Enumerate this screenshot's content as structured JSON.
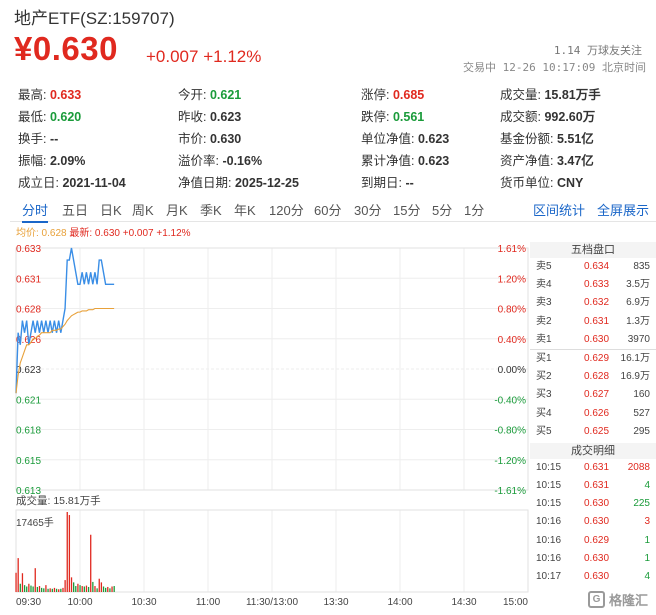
{
  "header": {
    "title": "地产ETF(SZ:159707)",
    "price": "¥0.630",
    "change": "+0.007",
    "change_pct": "+1.12%",
    "follow_count": "1.14 万球友关注",
    "status": "交易中 12-26 10:17:09 北京时间"
  },
  "stats": [
    [
      {
        "label": "最高:",
        "value": "0.633",
        "color": "red"
      },
      {
        "label": "今开:",
        "value": "0.621",
        "color": "green"
      },
      {
        "label": "涨停:",
        "value": "0.685",
        "color": "red"
      },
      {
        "label": "成交量:",
        "value": "15.81万手",
        "color": "dark"
      }
    ],
    [
      {
        "label": "最低:",
        "value": "0.620",
        "color": "green"
      },
      {
        "label": "昨收:",
        "value": "0.623",
        "color": "dark"
      },
      {
        "label": "跌停:",
        "value": "0.561",
        "color": "green"
      },
      {
        "label": "成交额:",
        "value": "992.60万",
        "color": "dark"
      }
    ],
    [
      {
        "label": "换手:",
        "value": "--",
        "color": "dark"
      },
      {
        "label": "市价:",
        "value": "0.630",
        "color": "dark"
      },
      {
        "label": "单位净值:",
        "value": "0.623",
        "color": "dark"
      },
      {
        "label": "基金份额:",
        "value": "5.51亿",
        "color": "dark"
      }
    ],
    [
      {
        "label": "振幅:",
        "value": "2.09%",
        "color": "dark"
      },
      {
        "label": "溢价率:",
        "value": "-0.16%",
        "color": "dark"
      },
      {
        "label": "累计净值:",
        "value": "0.623",
        "color": "dark"
      },
      {
        "label": "资产净值:",
        "value": "3.47亿",
        "color": "dark"
      }
    ],
    [
      {
        "label": "成立日:",
        "value": "2021-11-04",
        "color": "dark"
      },
      {
        "label": "净值日期:",
        "value": "2025-12-25",
        "color": "dark"
      },
      {
        "label": "到期日:",
        "value": "--",
        "color": "dark"
      },
      {
        "label": "货币单位:",
        "value": "CNY",
        "color": "dark"
      }
    ]
  ],
  "tabs": [
    "分时",
    "五日",
    "日K",
    "周K",
    "月K",
    "季K",
    "年K",
    "120分",
    "60分",
    "30分",
    "15分",
    "5分",
    "1分"
  ],
  "active_tab": "分时",
  "right_links": [
    "区间统计",
    "全屏展示"
  ],
  "legend": {
    "avg": "均价: 0.628",
    "last": "最新: 0.630 +0.007 +1.12%"
  },
  "chart_data": {
    "type": "line",
    "price_ticks": [
      "0.633",
      "0.631",
      "0.628",
      "0.626",
      "0.623",
      "0.621",
      "0.618",
      "0.615",
      "0.613"
    ],
    "pct_ticks": [
      "1.61%",
      "1.20%",
      "0.80%",
      "0.40%",
      "0.00%",
      "-0.40%",
      "-0.80%",
      "-1.20%",
      "-1.61%"
    ],
    "x_ticks": [
      "09:30",
      "10:00",
      "10:30",
      "11:00",
      "11:30/13:00",
      "13:30",
      "14:00",
      "14:30",
      "15:00"
    ],
    "ylim": [
      0.613,
      0.633
    ],
    "minutes_total": 240,
    "series": [
      {
        "name": "最新",
        "color": "#3a8ee6",
        "values": [
          0.621,
          0.626,
          0.625,
          0.627,
          0.626,
          0.627,
          0.625,
          0.626,
          0.627,
          0.626,
          0.627,
          0.626,
          0.627,
          0.626,
          0.627,
          0.626,
          0.627,
          0.626,
          0.627,
          0.626,
          0.627,
          0.626,
          0.627,
          0.628,
          0.632,
          0.632,
          0.633,
          0.632,
          0.631,
          0.63,
          0.63,
          0.631,
          0.63,
          0.631,
          0.63,
          0.631,
          0.63,
          0.631,
          0.63,
          0.632,
          0.632,
          0.631,
          0.63,
          0.63,
          0.63,
          0.63,
          0.63
        ]
      },
      {
        "name": "均价",
        "color": "#e8a13a",
        "values": [
          0.621,
          0.6225,
          0.6235,
          0.624,
          0.6245,
          0.625,
          0.625,
          0.6252,
          0.6255,
          0.6255,
          0.6257,
          0.6258,
          0.626,
          0.626,
          0.626,
          0.626,
          0.626,
          0.6262,
          0.6262,
          0.6262,
          0.6263,
          0.6263,
          0.6265,
          0.6267,
          0.627,
          0.6272,
          0.6274,
          0.6275,
          0.6276,
          0.6277,
          0.6277,
          0.6278,
          0.6278,
          0.6278,
          0.6279,
          0.6279,
          0.6279,
          0.628,
          0.628,
          0.628,
          0.628,
          0.628,
          0.628,
          0.628,
          0.628,
          0.628,
          0.628
        ]
      }
    ],
    "volume": {
      "label": "成交量: 15.81万手",
      "max_label": "17465手",
      "max": 17465,
      "values": [
        4200,
        7400,
        1800,
        4100,
        1500,
        1200,
        1800,
        1400,
        1200,
        5200,
        1100,
        1300,
        900,
        800,
        1500,
        700,
        800,
        700,
        900,
        700,
        600,
        700,
        900,
        2600,
        17465,
        16800,
        3200,
        2100,
        1300,
        1800,
        1500,
        1300,
        1200,
        1400,
        1100,
        12500,
        2200,
        1300,
        800,
        2900,
        2100,
        1200,
        900,
        1100,
        800,
        1200,
        1300
      ],
      "colors": [
        "r",
        "r",
        "g",
        "r",
        "g",
        "g",
        "r",
        "g",
        "g",
        "r",
        "g",
        "r",
        "g",
        "g",
        "r",
        "g",
        "r",
        "g",
        "r",
        "g",
        "r",
        "g",
        "r",
        "r",
        "r",
        "r",
        "r",
        "g",
        "g",
        "r",
        "g",
        "r",
        "g",
        "r",
        "g",
        "r",
        "g",
        "r",
        "g",
        "r",
        "r",
        "g",
        "g",
        "r",
        "g",
        "r",
        "g"
      ]
    }
  },
  "orderbook": {
    "title": "五档盘口",
    "asks": [
      {
        "label": "卖5",
        "price": "0.634",
        "qty": "835"
      },
      {
        "label": "卖4",
        "price": "0.633",
        "qty": "3.5万"
      },
      {
        "label": "卖3",
        "price": "0.632",
        "qty": "6.9万"
      },
      {
        "label": "卖2",
        "price": "0.631",
        "qty": "1.3万"
      },
      {
        "label": "卖1",
        "price": "0.630",
        "qty": "3970"
      }
    ],
    "bids": [
      {
        "label": "买1",
        "price": "0.629",
        "qty": "16.1万"
      },
      {
        "label": "买2",
        "price": "0.628",
        "qty": "16.9万"
      },
      {
        "label": "买3",
        "price": "0.627",
        "qty": "160"
      },
      {
        "label": "买4",
        "price": "0.626",
        "qty": "527"
      },
      {
        "label": "买5",
        "price": "0.625",
        "qty": "295"
      }
    ],
    "trades_title": "成交明细",
    "trades": [
      {
        "time": "10:15",
        "price": "0.631",
        "qty": "2088",
        "side": "r"
      },
      {
        "time": "10:15",
        "price": "0.631",
        "qty": "4",
        "side": "g"
      },
      {
        "time": "10:15",
        "price": "0.630",
        "qty": "225",
        "side": "g"
      },
      {
        "time": "10:16",
        "price": "0.630",
        "qty": "3",
        "side": "r"
      },
      {
        "time": "10:16",
        "price": "0.629",
        "qty": "1",
        "side": "g"
      },
      {
        "time": "10:16",
        "price": "0.630",
        "qty": "1",
        "side": "g"
      },
      {
        "time": "10:17",
        "price": "0.630",
        "qty": "4",
        "side": "g"
      }
    ]
  },
  "watermark": "格隆汇",
  "colors": {
    "up": "#e0291f",
    "down": "#1a9b3a",
    "link": "#1a66c8"
  }
}
